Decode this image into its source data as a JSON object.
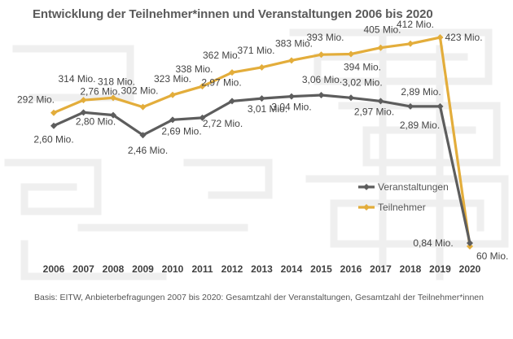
{
  "title": "Entwicklung der Teilnehmer*innen und Veranstaltungen 2006 bis 2020",
  "footnote": "Basis: EITW, Anbieterbefragungen 2007 bis 2020: Gesamtzahl der Veranstaltungen, Gesamtzahl der Teilnehmer*innen",
  "colors": {
    "veranstaltungen": "#5d5d5d",
    "teilnehmer": "#e3ad3b",
    "maze": "#ececec"
  },
  "chart_data": {
    "type": "line",
    "categories": [
      "2006",
      "2007",
      "2008",
      "2009",
      "2010",
      "2011",
      "2012",
      "2013",
      "2014",
      "2015",
      "2016",
      "2017",
      "2018",
      "2019",
      "2020"
    ],
    "grid": false,
    "legend_position": "right",
    "series": [
      {
        "name": "Veranstaltungen",
        "values": [
          2.6,
          2.8,
          2.76,
          2.46,
          2.69,
          2.72,
          2.97,
          3.01,
          3.04,
          3.06,
          3.02,
          2.97,
          2.89,
          2.89,
          0.84
        ],
        "labels": [
          "2,60 Mio.",
          "2,80 Mio.",
          "2,76 Mio.",
          "2,46 Mio.",
          "2,69 Mio.",
          "2,72 Mio.",
          "2,97 Mio.",
          "3,01 Mio.",
          "3,04 Mio.",
          "3,06 Mio.",
          "3,02 Mio.",
          "2,97 Mio.",
          "2,89 Mio.",
          "2,89 Mio.",
          "0,84 Mio."
        ]
      },
      {
        "name": "Teilnehmer",
        "values": [
          292,
          314,
          318,
          302,
          323,
          338,
          362,
          371,
          383,
          393,
          394,
          405,
          412,
          423,
          60
        ],
        "labels": [
          "292 Mio.",
          "314 Mio.",
          "318 Mio.",
          "302 Mio.",
          "323 Mio.",
          "338 Mio.",
          "362 Mio.",
          "371 Mio.",
          "383 Mio.",
          "393 Mio.",
          "394 Mio.",
          "405 Mio.",
          "412 Mio.",
          "423 Mio.",
          "60 Mio."
        ]
      }
    ]
  }
}
